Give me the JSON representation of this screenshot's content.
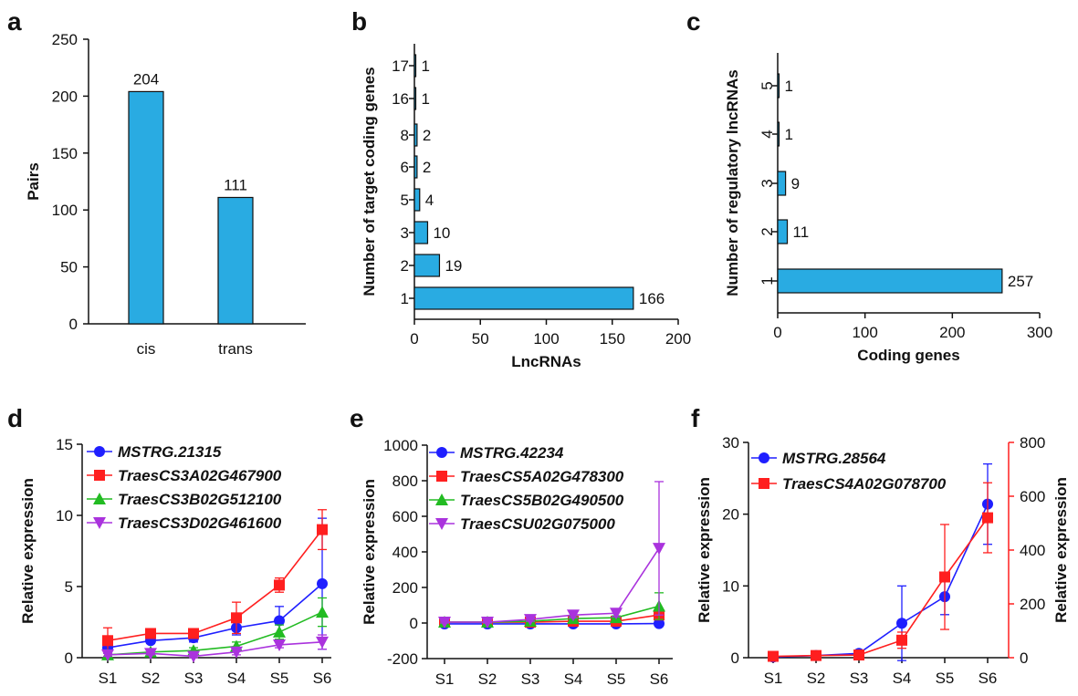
{
  "colors": {
    "bar": "#29abe2",
    "blue": "#1f1fff",
    "red": "#ff1f1f",
    "green": "#22bb22",
    "purple": "#aa33dd"
  },
  "chart_data": [
    {
      "panel": "a",
      "type": "bar",
      "categories": [
        "cis",
        "trans"
      ],
      "values": [
        204,
        111
      ],
      "ylabel": "Pairs",
      "xlabel": "",
      "ylim": [
        0,
        250
      ],
      "yticks": [
        0,
        50,
        100,
        150,
        200,
        250
      ]
    },
    {
      "panel": "b",
      "type": "bar",
      "orientation": "horizontal",
      "categories": [
        "1",
        "2",
        "3",
        "5",
        "6",
        "8",
        "16",
        "17"
      ],
      "values": [
        166,
        19,
        10,
        4,
        2,
        2,
        1,
        1
      ],
      "xlabel": "LncRNAs",
      "ylabel": "Number of target coding genes",
      "xlim": [
        0,
        200
      ],
      "xticks": [
        0,
        50,
        100,
        150,
        200
      ]
    },
    {
      "panel": "c",
      "type": "bar",
      "orientation": "horizontal",
      "categories": [
        "1",
        "2",
        "3",
        "4",
        "5"
      ],
      "values": [
        257,
        11,
        9,
        1,
        1
      ],
      "xlabel": "Coding genes",
      "ylabel": "Number of regulatory lncRNAs",
      "xlim": [
        0,
        300
      ],
      "xticks": [
        0,
        100,
        200,
        300
      ]
    },
    {
      "panel": "d",
      "type": "line",
      "x": [
        "S1",
        "S2",
        "S3",
        "S4",
        "S5",
        "S6"
      ],
      "ylabel": "Relative expression",
      "xlabel": "",
      "ylim": [
        0,
        15
      ],
      "yticks": [
        0,
        5,
        10,
        15
      ],
      "series": [
        {
          "name": "MSTRG.21315",
          "color": "blue",
          "marker": "circle",
          "values": [
            0.7,
            1.2,
            1.4,
            2.1,
            2.6,
            5.2
          ],
          "err": [
            0.3,
            0.2,
            0.3,
            0.5,
            1.0,
            4.6
          ]
        },
        {
          "name": "TraesCS3A02G467900",
          "color": "red",
          "marker": "square",
          "values": [
            1.2,
            1.7,
            1.7,
            2.8,
            5.1,
            9.0
          ],
          "err": [
            0.9,
            0.2,
            0.3,
            1.1,
            0.5,
            1.4
          ]
        },
        {
          "name": "TraesCS3B02G512100",
          "color": "green",
          "marker": "triangle-up",
          "values": [
            0.2,
            0.4,
            0.5,
            0.8,
            1.8,
            3.2
          ],
          "err": [
            0.1,
            0.1,
            0.2,
            0.3,
            0.5,
            1.0
          ]
        },
        {
          "name": "TraesCS3D02G461600",
          "color": "purple",
          "marker": "triangle-down",
          "values": [
            0.2,
            0.3,
            0.1,
            0.4,
            0.9,
            1.1
          ],
          "err": [
            0.1,
            0.1,
            0.1,
            0.2,
            0.2,
            0.5
          ]
        }
      ]
    },
    {
      "panel": "e",
      "type": "line",
      "x": [
        "S1",
        "S2",
        "S3",
        "S4",
        "S5",
        "S6"
      ],
      "ylabel": "Relative expression",
      "xlabel": "",
      "ylim": [
        -200,
        1000
      ],
      "yticks": [
        -200,
        0,
        200,
        400,
        600,
        800,
        1000
      ],
      "series": [
        {
          "name": "MSTRG.42234",
          "color": "blue",
          "marker": "circle",
          "values": [
            -5,
            -5,
            -5,
            -5,
            -5,
            -3
          ],
          "err": [
            5,
            5,
            5,
            5,
            5,
            5
          ]
        },
        {
          "name": "TraesCS5A02G478300",
          "color": "red",
          "marker": "square",
          "values": [
            5,
            5,
            5,
            10,
            10,
            45
          ],
          "err": [
            5,
            5,
            5,
            5,
            5,
            15
          ]
        },
        {
          "name": "TraesCS5B02G490500",
          "color": "green",
          "marker": "triangle-up",
          "values": [
            5,
            5,
            10,
            25,
            30,
            95
          ],
          "err": [
            5,
            5,
            5,
            10,
            10,
            75
          ]
        },
        {
          "name": "TraesCSU02G075000",
          "color": "purple",
          "marker": "triangle-down",
          "values": [
            5,
            5,
            20,
            45,
            55,
            420
          ],
          "err": [
            5,
            5,
            10,
            15,
            20,
            375
          ]
        }
      ]
    },
    {
      "panel": "f",
      "type": "line",
      "x": [
        "S1",
        "S2",
        "S3",
        "S4",
        "S5",
        "S6"
      ],
      "ylabel": "Relative expression",
      "y2label": "Relative expression",
      "xlabel": "",
      "ylim": [
        0,
        30
      ],
      "yticks": [
        0,
        10,
        20,
        30
      ],
      "y2lim": [
        0,
        800
      ],
      "y2ticks": [
        0,
        200,
        400,
        600,
        800
      ],
      "series": [
        {
          "name": "MSTRG.28564",
          "color": "blue",
          "marker": "circle",
          "axis": "left",
          "values": [
            0.1,
            0.3,
            0.6,
            4.8,
            8.5,
            21.4
          ],
          "err": [
            0.2,
            0.2,
            0.4,
            5.2,
            2.5,
            5.6
          ]
        },
        {
          "name": "TraesCS4A02G078700",
          "color": "red",
          "marker": "square",
          "axis": "right",
          "values": [
            5,
            8,
            10,
            65,
            300,
            520
          ],
          "err": [
            5,
            5,
            5,
            30,
            195,
            130
          ]
        }
      ]
    }
  ]
}
